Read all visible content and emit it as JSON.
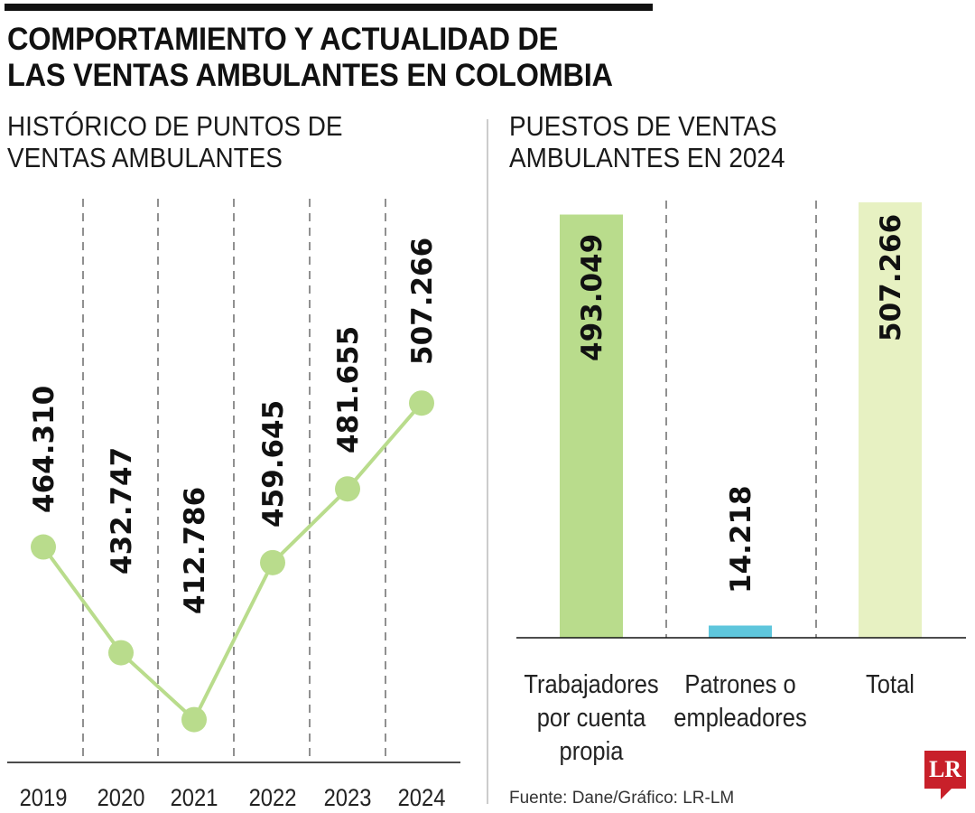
{
  "title": "COMPORTAMIENTO Y ACTUALIDAD DE LAS VENTAS AMBULANTES EN COLOMBIA",
  "title_lines": [
    "COMPORTAMIENTO Y ACTUALIDAD DE",
    "LAS VENTAS AMBULANTES EN COLOMBIA"
  ],
  "source": "Fuente: Dane/Gráfico: LR-LM",
  "logo": "LR",
  "chart_data": [
    {
      "type": "line",
      "title_lines": [
        "HISTÓRICO DE PUNTOS DE",
        "VENTAS AMBULANTES"
      ],
      "categories": [
        "2019",
        "2020",
        "2021",
        "2022",
        "2023",
        "2024"
      ],
      "values": [
        464310,
        432747,
        412786,
        459645,
        481655,
        507266
      ],
      "data_labels": [
        "464.310",
        "432.747",
        "412.786",
        "459.645",
        "481.655",
        "507.266"
      ],
      "ylim": [
        400000,
        520000
      ],
      "grid": "vertical dashed",
      "color": "#b9dc8c"
    },
    {
      "type": "bar",
      "title_lines": [
        "PUESTOS DE VENTAS",
        "AMBULANTES EN 2024"
      ],
      "categories": [
        [
          "Trabajadores",
          "por cuenta",
          "propia"
        ],
        [
          "Patrones o",
          "empleadores"
        ],
        [
          "Total"
        ]
      ],
      "values": [
        493049,
        14218,
        507266
      ],
      "data_labels": [
        "493.049",
        "14.218",
        "507.266"
      ],
      "colors": [
        "#b9dc8c",
        "#5ec6dc",
        "#e7f1c2"
      ],
      "ylim": [
        0,
        507266
      ],
      "grid": "vertical dashed"
    }
  ]
}
